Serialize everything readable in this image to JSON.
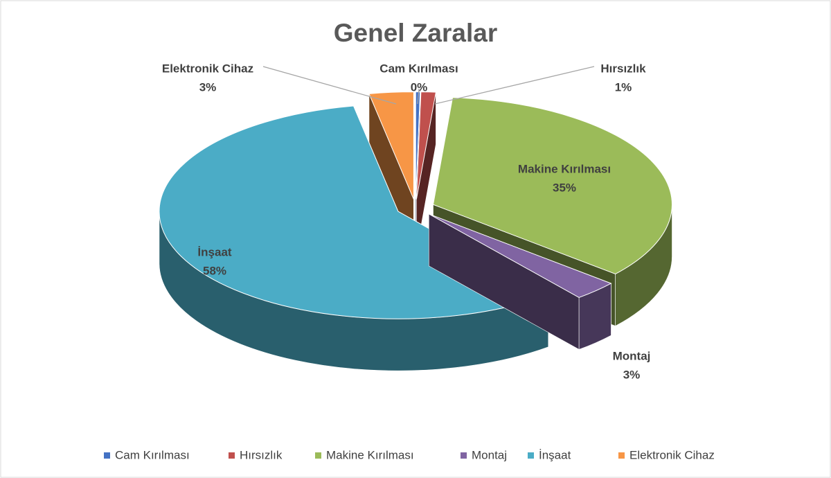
{
  "chart_data": {
    "type": "pie3d",
    "title": "Genel Zaralar",
    "categories": [
      "Cam Kırılması",
      "Hırsızlık",
      "Makine Kırılması",
      "Montaj",
      "İnşaat",
      "Elektronik Cihaz"
    ],
    "values": [
      0.3,
      1,
      35,
      3,
      58,
      3
    ],
    "value_labels": [
      "0%",
      "1%",
      "35%",
      "3%",
      "58%",
      "3%"
    ],
    "colors": [
      "#4472c4",
      "#c0504d",
      "#9bbb59",
      "#8064a2",
      "#4bacc6",
      "#f79646"
    ],
    "legend": "bottom"
  }
}
